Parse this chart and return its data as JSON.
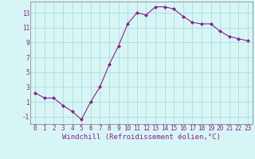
{
  "xlabel": "Windchill (Refroidissement éolien,°C)",
  "x": [
    0,
    1,
    2,
    3,
    4,
    5,
    6,
    7,
    8,
    9,
    10,
    11,
    12,
    13,
    14,
    15,
    16,
    17,
    18,
    19,
    20,
    21,
    22,
    23
  ],
  "y": [
    2.2,
    1.5,
    1.5,
    0.5,
    -0.3,
    -1.4,
    1.0,
    3.0,
    6.0,
    8.5,
    11.5,
    13.0,
    12.7,
    13.8,
    13.8,
    13.5,
    12.5,
    11.7,
    11.5,
    11.5,
    10.5,
    9.8,
    9.5,
    9.2
  ],
  "line_color": "#882288",
  "marker": "D",
  "marker_size": 2.0,
  "bg_color": "#d8f5f5",
  "grid_color": "#aadddd",
  "tick_label_color": "#882288",
  "xlabel_color": "#882288",
  "ylim": [
    -2.0,
    14.5
  ],
  "yticks": [
    -1,
    1,
    3,
    5,
    7,
    9,
    11,
    13
  ],
  "xlim": [
    -0.5,
    23.5
  ],
  "tick_fontsize": 5.5,
  "xlabel_fontsize": 6.5
}
